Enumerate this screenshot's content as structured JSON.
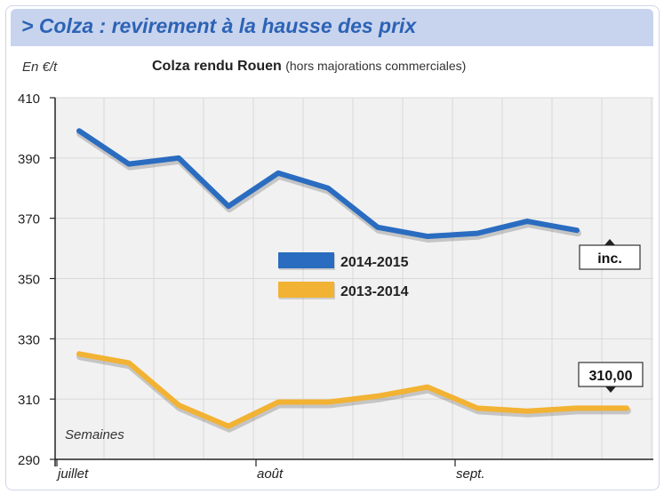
{
  "header": {
    "title": "> Colza : revirement à la hausse des prix"
  },
  "colors": {
    "header_bg": "#c8d4ee",
    "header_text": "#2d63b5",
    "plot_bg": "#f1f1f1",
    "series_2014_2015": "#2a6cc0",
    "series_2013_2014": "#f2b233"
  },
  "chart_data": {
    "type": "line",
    "title": "Colza rendu Rouen",
    "subtitle": "(hors majorations commerciales)",
    "ylabel": "En €/t",
    "xlabel": "Semaines",
    "ylim": [
      290,
      410
    ],
    "yticks": [
      290,
      310,
      330,
      350,
      370,
      390,
      410
    ],
    "grid": true,
    "legend_position": "center",
    "x_category_labels": [
      {
        "label": "juillet",
        "week": 1
      },
      {
        "label": "août",
        "week": 5
      },
      {
        "label": "sept.",
        "week": 9
      }
    ],
    "series": [
      {
        "name": "2014-2015",
        "color": "#2a6cc0",
        "weeks": [
          1,
          2,
          3,
          4,
          5,
          6,
          7,
          8,
          9,
          10,
          11
        ],
        "values": [
          399,
          388,
          390,
          374,
          385,
          380,
          367,
          364,
          365,
          369,
          366
        ]
      },
      {
        "name": "2013-2014",
        "color": "#f2b233",
        "weeks": [
          1,
          2,
          3,
          4,
          5,
          6,
          7,
          8,
          9,
          10,
          11,
          12
        ],
        "values": [
          325,
          322,
          308,
          301,
          309,
          309,
          311,
          314,
          307,
          306,
          307,
          307
        ]
      }
    ],
    "annotations": [
      {
        "text": "inc.",
        "series": "2014-2015",
        "arrow": "up"
      },
      {
        "text": "310,00",
        "series": "2013-2014",
        "arrow": "down"
      }
    ]
  }
}
